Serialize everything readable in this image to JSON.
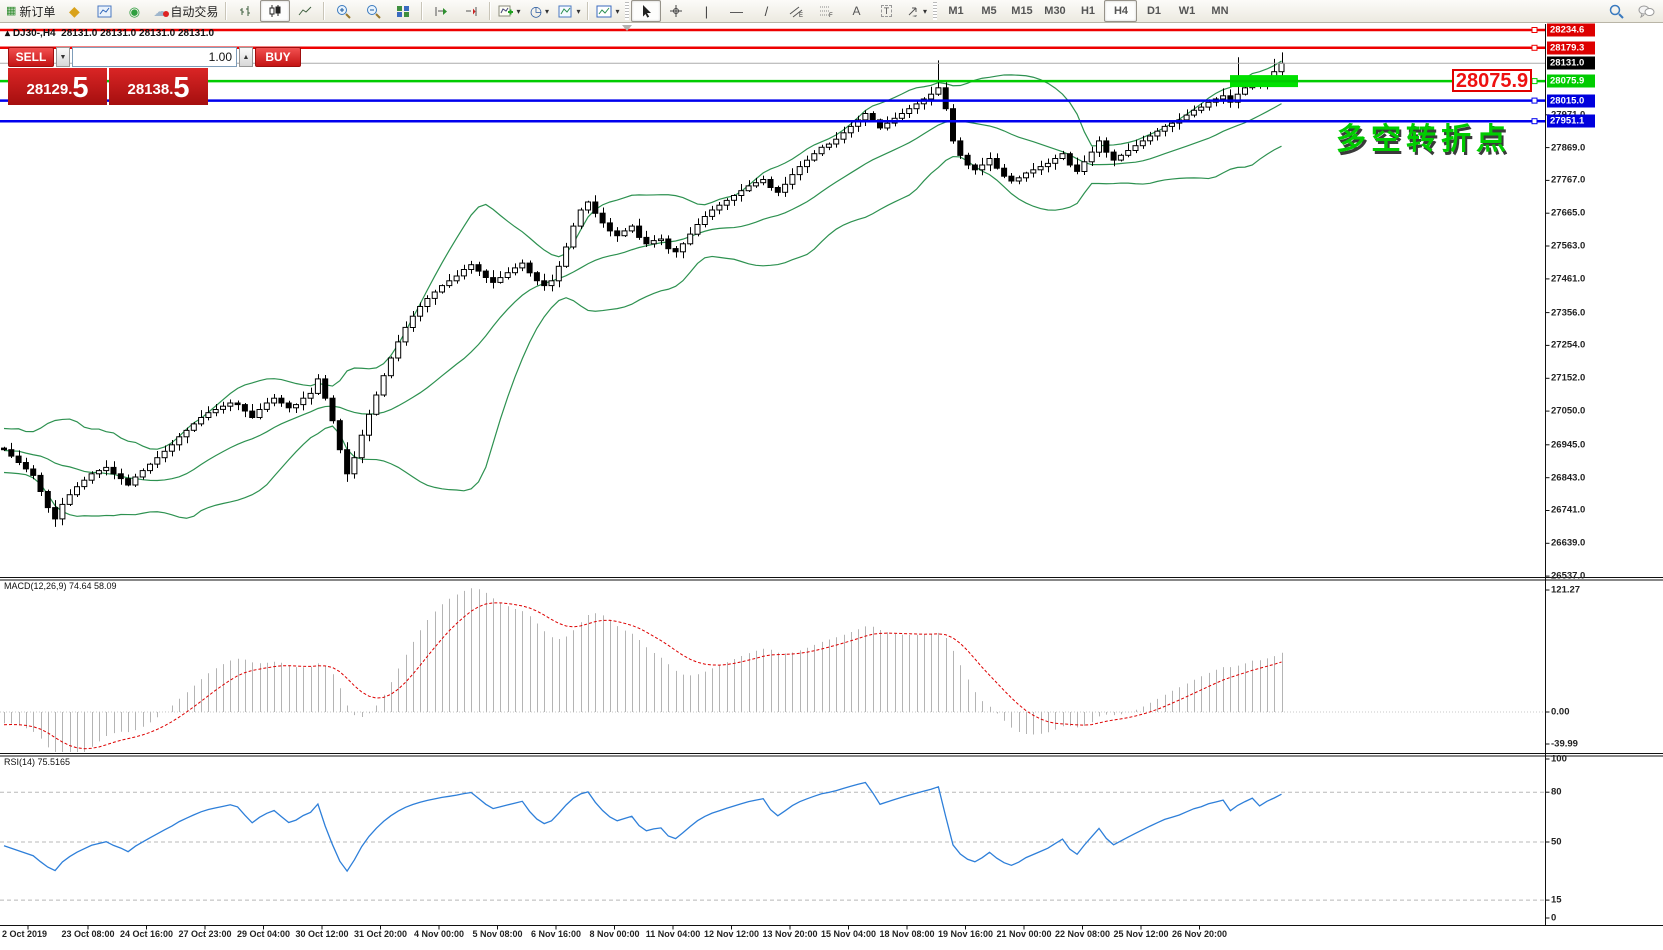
{
  "toolbar": {
    "new_order_label": "新订单",
    "auto_trading_label": "自动交易",
    "timeframes": [
      "M1",
      "M5",
      "M15",
      "M30",
      "H1",
      "H4",
      "D1",
      "W1",
      "MN"
    ],
    "active_timeframe": "H4"
  },
  "chart_header": {
    "symbol_info": "DJ30-,H4  28131.0 28131.0 28131.0 28131.0",
    "expand_arrow": "▴"
  },
  "trade_panel": {
    "sell_label": "SELL",
    "buy_label": "BUY",
    "volume": "1.00",
    "sell_price_main": "28129.",
    "sell_price_big": "5",
    "buy_price_main": "28138.",
    "buy_price_big": "5"
  },
  "annotations": {
    "callout_price": "28075.9",
    "turning_point_text": "多空转折点"
  },
  "price_axis": {
    "ticks": [
      "27971.0",
      "27869.0",
      "27767.0",
      "27665.0",
      "27563.0",
      "27461.0",
      "27356.0",
      "27254.0",
      "27152.0",
      "27050.0",
      "26945.0",
      "26843.0",
      "26741.0",
      "26639.0",
      "26537.0"
    ],
    "tags": [
      {
        "label": "28234.6",
        "price": 28234.6,
        "bg": "#dd0000",
        "line": "#ee0000",
        "lw": 2.5
      },
      {
        "label": "28179.3",
        "price": 28179.3,
        "bg": "#dd0000",
        "line": "#ee0000",
        "lw": 2.5
      },
      {
        "label": "28131.0",
        "price": 28131.0,
        "bg": "#000000",
        "line": "#ababab",
        "lw": 1
      },
      {
        "label": "28075.9",
        "price": 28075.9,
        "bg": "#00cc00",
        "line": "#00cc00",
        "lw": 2.5
      },
      {
        "label": "28015.0",
        "price": 28015.0,
        "bg": "#0000dd",
        "line": "#0000ee",
        "lw": 2.5
      },
      {
        "label": "27951.1",
        "price": 27951.1,
        "bg": "#0000dd",
        "line": "#0000ee",
        "lw": 2.5
      }
    ]
  },
  "macd_panel": {
    "label": "MACD(12,26,9) 74.64 58.09",
    "axis_max": "121.27",
    "axis_zero": "0.00",
    "axis_min": "-39.99"
  },
  "rsi_panel": {
    "label": "RSI(14) 75.5165",
    "axis_top": "100",
    "axis_bottom": "0",
    "levels": [
      80,
      50,
      15
    ]
  },
  "time_axis": {
    "labels": [
      "2 Oct 2019",
      "23 Oct 08:00",
      "24 Oct 16:00",
      "27 Oct 23:00",
      "29 Oct 04:00",
      "30 Oct 12:00",
      "31 Oct 20:00",
      "4 Nov 00:00",
      "5 Nov 08:00",
      "6 Nov 16:00",
      "8 Nov 00:00",
      "11 Nov 04:00",
      "12 Nov 12:00",
      "13 Nov 20:00",
      "15 Nov 04:00",
      "18 Nov 08:00",
      "19 Nov 16:00",
      "21 Nov 00:00",
      "22 Nov 08:00",
      "25 Nov 12:00",
      "26 Nov 20:00"
    ]
  },
  "chart_data": {
    "type": "candlestick",
    "symbol": "DJ30-",
    "timeframe": "H4",
    "indicators": [
      "Bollinger Bands(20,2)",
      "MACD(12,26,9)",
      "RSI(14)"
    ],
    "price_top": 28234.6,
    "price_bottom": 26537.0,
    "pre_closes": [
      26980,
      26940,
      26905,
      26990,
      26950,
      26885,
      26930,
      26970,
      26910,
      26875,
      26950,
      26985,
      26920,
      26865,
      26940,
      26900,
      26960,
      26925,
      26885,
      26935
    ],
    "closes": [
      26930,
      26910,
      26890,
      26870,
      26850,
      26800,
      26750,
      26715,
      26760,
      26790,
      26815,
      26835,
      26855,
      26865,
      26875,
      26855,
      26840,
      26820,
      26845,
      26865,
      26885,
      26905,
      26925,
      26945,
      26970,
      26990,
      27010,
      27030,
      27045,
      27055,
      27065,
      27075,
      27070,
      27050,
      27030,
      27055,
      27075,
      27090,
      27075,
      27060,
      27070,
      27090,
      27105,
      27150,
      27090,
      27020,
      26930,
      26855,
      26905,
      26975,
      27040,
      27100,
      27160,
      27215,
      27265,
      27310,
      27345,
      27375,
      27400,
      27420,
      27440,
      27455,
      27470,
      27490,
      27505,
      27485,
      27465,
      27450,
      27465,
      27480,
      27495,
      27510,
      27480,
      27455,
      27440,
      27455,
      27500,
      27560,
      27625,
      27675,
      27700,
      27665,
      27635,
      27610,
      27595,
      27610,
      27625,
      27590,
      27570,
      27580,
      27585,
      27555,
      27545,
      27570,
      27600,
      27630,
      27655,
      27675,
      27690,
      27705,
      27720,
      27735,
      27750,
      27760,
      27770,
      27745,
      27730,
      27755,
      27785,
      27810,
      27830,
      27850,
      27870,
      27880,
      27895,
      27915,
      27935,
      27955,
      27975,
      27955,
      27930,
      27945,
      27960,
      27975,
      27990,
      28005,
      28020,
      28035,
      28055,
      27990,
      27890,
      27845,
      27815,
      27800,
      27815,
      27835,
      27805,
      27780,
      27765,
      27775,
      27790,
      27800,
      27810,
      27820,
      27835,
      27850,
      27815,
      27795,
      27825,
      27855,
      27890,
      27855,
      27830,
      27845,
      27860,
      27875,
      27890,
      27905,
      27920,
      27935,
      27945,
      27955,
      27970,
      27985,
      27995,
      28010,
      28020,
      28030,
      28010,
      28035,
      28055,
      28075,
      28060,
      28085,
      28105,
      28131
    ],
    "high_overrides": {
      "43": 27165,
      "128": 28140,
      "169": 28150,
      "174": 28145,
      "175": 28165
    },
    "low_overrides": {
      "7": 26690,
      "47": 26830
    },
    "colors": {
      "bollinger": "#2d9150",
      "bull_body": "#ffffff",
      "bear_body": "#000000",
      "outline": "#000000",
      "macd_histogram": "#b4b4b4",
      "macd_signal": "#dd0000",
      "rsi_line": "#2e7fd9",
      "highlight_rect": "#00e000",
      "grid": "#c8c8c8"
    },
    "highlight_zone_price": 28075.9
  }
}
